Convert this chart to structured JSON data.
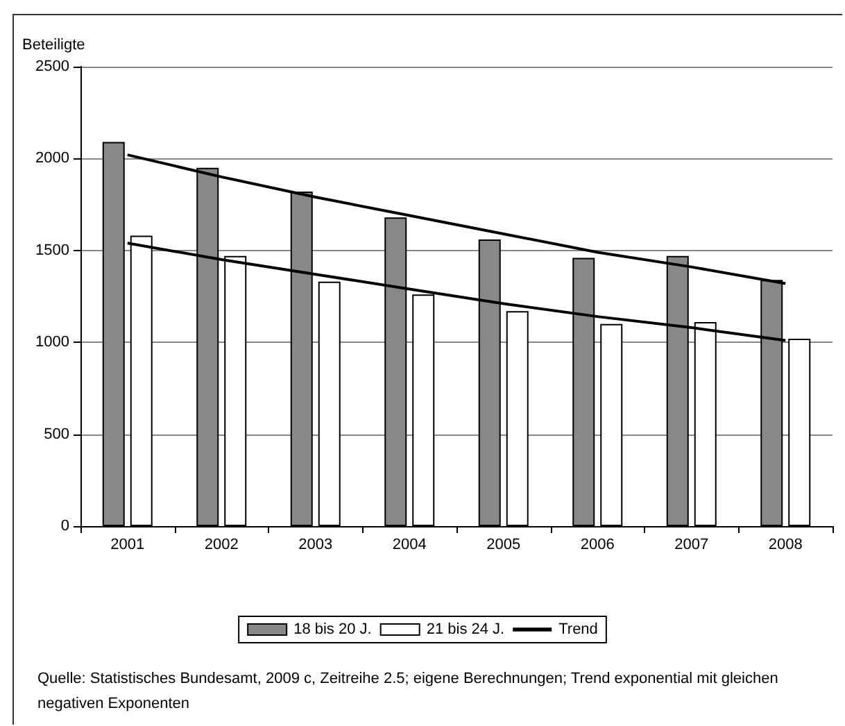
{
  "chart_data": {
    "type": "bar",
    "ylabel": "Beteiligte",
    "categories": [
      "2001",
      "2002",
      "2003",
      "2004",
      "2005",
      "2006",
      "2007",
      "2008"
    ],
    "series": [
      {
        "name": "18 bis 20 J.",
        "color": "#888888",
        "values": [
          2090,
          1950,
          1820,
          1680,
          1560,
          1460,
          1470,
          1340
        ]
      },
      {
        "name": "21 bis 24 J.",
        "color": "#ffffff",
        "values": [
          1580,
          1470,
          1330,
          1260,
          1170,
          1100,
          1110,
          1020
        ]
      },
      {
        "name": "Trend",
        "type": "line",
        "color": "#000000",
        "values": [
          2020,
          1900,
          1790,
          1690,
          1590,
          1490,
          1410,
          1320
        ]
      },
      {
        "type": "line",
        "color": "#000000",
        "values": [
          1540,
          1450,
          1370,
          1290,
          1210,
          1140,
          1080,
          1010
        ]
      }
    ],
    "ylim": [
      0,
      2500
    ],
    "yticks": [
      0,
      500,
      1000,
      1500,
      2000,
      2500
    ],
    "grid": "y",
    "legend": "bottom",
    "marker": "none",
    "annotations": [
      "Quelle: Statistisches Bundesamt, 2009 c, Zeitreihe 2.5; eigene Berechnungen; Trend exponential mit gleichen negativen Exponenten"
    ]
  }
}
